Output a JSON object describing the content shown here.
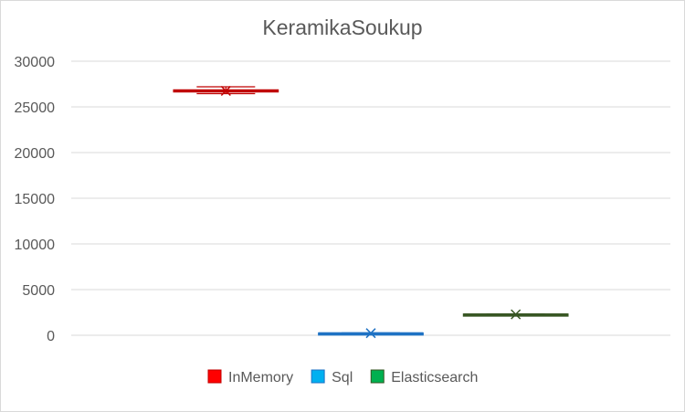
{
  "chart_data": {
    "type": "box",
    "title": "KeramikaSoukup",
    "xlabel": "",
    "ylabel": "",
    "ylim": [
      0,
      30000
    ],
    "yticks": [
      0,
      5000,
      10000,
      15000,
      20000,
      25000,
      30000
    ],
    "grid": true,
    "legend_position": "bottom",
    "series": [
      {
        "name": "InMemory",
        "color": "#c00000",
        "legend_fill": "#ff0000",
        "min": 26450,
        "q1": 26650,
        "median": 26750,
        "q3": 26850,
        "max": 27200,
        "mean": 26750
      },
      {
        "name": "Sql",
        "color": "#1f72c4",
        "legend_fill": "#00b0f0",
        "min": 180,
        "q1": 200,
        "median": 220,
        "q3": 240,
        "max": 260,
        "mean": 230
      },
      {
        "name": "Elasticsearch",
        "color": "#375623",
        "legend_fill": "#00b050",
        "min": 2250,
        "q1": 2270,
        "median": 2290,
        "q3": 2310,
        "max": 2330,
        "mean": 2290
      }
    ]
  }
}
